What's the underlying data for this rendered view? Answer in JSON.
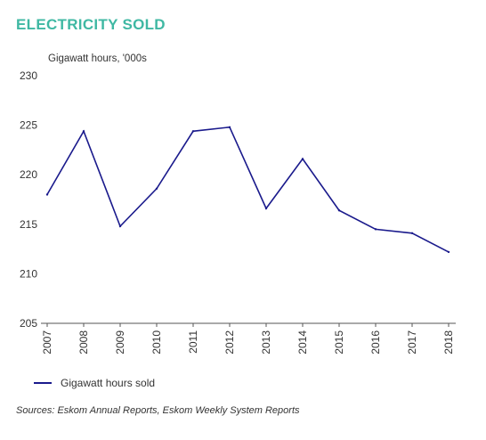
{
  "title": "ELECTRICITY SOLD",
  "title_color": "#3fb8a3",
  "source": "Sources: Eskom Annual Reports, Eskom Weekly System Reports",
  "chart_data": {
    "type": "line",
    "title": "ELECTRICITY SOLD",
    "ylabel": "Gigawatt hours, '000s",
    "xlabel": "",
    "categories": [
      "2007",
      "2008",
      "2009",
      "2010",
      "2011",
      "2012",
      "2013",
      "2014",
      "2015",
      "2016",
      "2017",
      "2018"
    ],
    "ylim": [
      205,
      230
    ],
    "yticks": [
      205,
      210,
      215,
      220,
      225,
      230
    ],
    "grid": false,
    "legend_position": "bottom-left",
    "series": [
      {
        "name": "Gigawatt hours sold",
        "color": "#1a1a8c",
        "values": [
          218.0,
          224.4,
          214.8,
          218.6,
          224.4,
          224.8,
          216.6,
          221.6,
          216.4,
          214.5,
          214.1,
          212.2
        ]
      }
    ]
  }
}
